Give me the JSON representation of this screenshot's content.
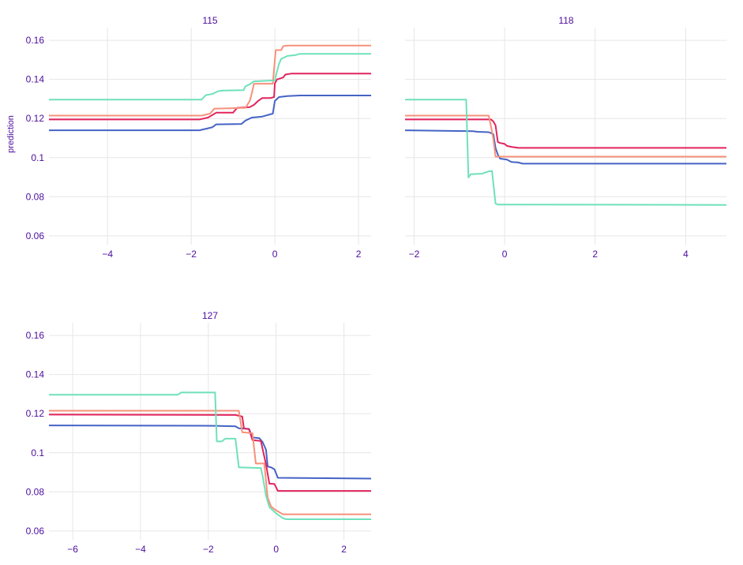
{
  "chart_data": {
    "type": "line",
    "ylabel": "prediction",
    "text_color": "#4b0d9c",
    "grid_color": "#e6e6e6",
    "y_ticks": [
      0.06,
      0.08,
      0.1,
      0.12,
      0.14,
      0.16
    ],
    "y_tick_labels": [
      "0.06",
      "0.08",
      "0.1",
      "0.12",
      "0.14",
      "0.16"
    ],
    "series_colors": [
      "#4563c5",
      "#e2245d",
      "#f6917a",
      "#6fe1ba"
    ],
    "panels": [
      {
        "title": "115",
        "xlim": [
          -5.4,
          2.3
        ],
        "ylim": [
          0.0555,
          0.1665
        ],
        "x_ticks": [
          -4,
          -2,
          0,
          2
        ],
        "x_tick_labels": [
          "−4",
          "−2",
          "0",
          "2"
        ],
        "series": [
          {
            "color": "#4563c5",
            "points": [
              [
                -5.4,
                0.114
              ],
              [
                -1.8,
                0.114
              ],
              [
                -1.5,
                0.1155
              ],
              [
                -1.4,
                0.117
              ],
              [
                -0.8,
                0.1172
              ],
              [
                -0.7,
                0.119
              ],
              [
                -0.55,
                0.1205
              ],
              [
                -0.3,
                0.121
              ],
              [
                -0.05,
                0.1225
              ],
              [
                0,
                0.129
              ],
              [
                0.1,
                0.131
              ],
              [
                0.3,
                0.1315
              ],
              [
                0.6,
                0.1318
              ],
              [
                2.3,
                0.1318
              ]
            ]
          },
          {
            "color": "#e2245d",
            "points": [
              [
                -5.4,
                0.1195
              ],
              [
                -1.8,
                0.1195
              ],
              [
                -1.6,
                0.1205
              ],
              [
                -1.4,
                0.123
              ],
              [
                -1.0,
                0.123
              ],
              [
                -0.9,
                0.1255
              ],
              [
                -0.6,
                0.1258
              ],
              [
                -0.5,
                0.127
              ],
              [
                -0.4,
                0.129
              ],
              [
                -0.3,
                0.1305
              ],
              [
                -0.1,
                0.1305
              ],
              [
                -0.02,
                0.131
              ],
              [
                0,
                0.138
              ],
              [
                0.05,
                0.14
              ],
              [
                0.2,
                0.141
              ],
              [
                0.25,
                0.1425
              ],
              [
                0.4,
                0.143
              ],
              [
                2.3,
                0.143
              ]
            ]
          },
          {
            "color": "#f6917a",
            "points": [
              [
                -5.4,
                0.1215
              ],
              [
                -1.75,
                0.1215
              ],
              [
                -1.55,
                0.1225
              ],
              [
                -1.45,
                0.125
              ],
              [
                -0.7,
                0.1255
              ],
              [
                -0.6,
                0.129
              ],
              [
                -0.55,
                0.133
              ],
              [
                -0.5,
                0.1378
              ],
              [
                -0.05,
                0.1378
              ],
              [
                0.02,
                0.155
              ],
              [
                0.15,
                0.155
              ],
              [
                0.2,
                0.157
              ],
              [
                0.3,
                0.1573
              ],
              [
                2.3,
                0.1573
              ]
            ]
          },
          {
            "color": "#6fe1ba",
            "points": [
              [
                -5.4,
                0.1297
              ],
              [
                -1.75,
                0.1297
              ],
              [
                -1.65,
                0.132
              ],
              [
                -1.5,
                0.1325
              ],
              [
                -1.35,
                0.134
              ],
              [
                -1.25,
                0.1343
              ],
              [
                -0.75,
                0.1345
              ],
              [
                -0.7,
                0.1365
              ],
              [
                -0.6,
                0.1375
              ],
              [
                -0.5,
                0.139
              ],
              [
                0,
                0.1395
              ],
              [
                0.05,
                0.144
              ],
              [
                0.1,
                0.148
              ],
              [
                0.15,
                0.1505
              ],
              [
                0.3,
                0.152
              ],
              [
                0.5,
                0.1525
              ],
              [
                0.6,
                0.1531
              ],
              [
                2.3,
                0.1531
              ]
            ]
          }
        ]
      },
      {
        "title": "118",
        "xlim": [
          -2.2,
          4.9
        ],
        "ylim": [
          0.0555,
          0.1665
        ],
        "x_ticks": [
          -2,
          0,
          2,
          4
        ],
        "x_tick_labels": [
          "−2",
          "0",
          "2",
          "4"
        ],
        "series": [
          {
            "color": "#4563c5",
            "points": [
              [
                -2.2,
                0.114
              ],
              [
                -0.7,
                0.1135
              ],
              [
                -0.6,
                0.1132
              ],
              [
                -0.35,
                0.113
              ],
              [
                -0.25,
                0.112
              ],
              [
                -0.2,
                0.105
              ],
              [
                -0.15,
                0.1015
              ],
              [
                -0.1,
                0.0995
              ],
              [
                0.05,
                0.099
              ],
              [
                0.15,
                0.0978
              ],
              [
                0.3,
                0.0975
              ],
              [
                0.4,
                0.0969
              ],
              [
                4.9,
                0.0969
              ]
            ]
          },
          {
            "color": "#e2245d",
            "points": [
              [
                -2.2,
                0.1195
              ],
              [
                -0.3,
                0.1195
              ],
              [
                -0.25,
                0.1185
              ],
              [
                -0.2,
                0.1165
              ],
              [
                -0.15,
                0.108
              ],
              [
                -0.1,
                0.1075
              ],
              [
                0,
                0.107
              ],
              [
                0.05,
                0.106
              ],
              [
                0.15,
                0.1055
              ],
              [
                0.3,
                0.105
              ],
              [
                4.9,
                0.105
              ]
            ]
          },
          {
            "color": "#f6917a",
            "points": [
              [
                -2.2,
                0.1215
              ],
              [
                -0.4,
                0.1215
              ],
              [
                -0.35,
                0.1215
              ],
              [
                -0.3,
                0.1158
              ],
              [
                -0.25,
                0.1095
              ],
              [
                -0.2,
                0.1005
              ],
              [
                4.9,
                0.1005
              ]
            ]
          },
          {
            "color": "#6fe1ba",
            "points": [
              [
                -2.2,
                0.1297
              ],
              [
                -0.85,
                0.1297
              ],
              [
                -0.8,
                0.0898
              ],
              [
                -0.75,
                0.0915
              ],
              [
                -0.5,
                0.0918
              ],
              [
                -0.35,
                0.093
              ],
              [
                -0.28,
                0.0932
              ],
              [
                -0.2,
                0.0765
              ],
              [
                -0.15,
                0.076
              ],
              [
                4.9,
                0.0758
              ]
            ]
          }
        ]
      },
      {
        "title": "127",
        "xlim": [
          -6.7,
          2.8
        ],
        "ylim": [
          0.0555,
          0.1665
        ],
        "x_ticks": [
          -6,
          -4,
          -2,
          0,
          2
        ],
        "x_tick_labels": [
          "−6",
          "−4",
          "−2",
          "0",
          "2"
        ],
        "series": [
          {
            "color": "#4563c5",
            "points": [
              [
                -6.7,
                0.114
              ],
              [
                -1.8,
                0.1138
              ],
              [
                -1.2,
                0.1135
              ],
              [
                -1.1,
                0.1125
              ],
              [
                -0.8,
                0.1122
              ],
              [
                -0.7,
                0.1078
              ],
              [
                -0.5,
                0.1075
              ],
              [
                -0.4,
                0.1055
              ],
              [
                -0.3,
                0.1015
              ],
              [
                -0.25,
                0.093
              ],
              [
                -0.15,
                0.0925
              ],
              [
                -0.05,
                0.0915
              ],
              [
                0.05,
                0.0872
              ],
              [
                1.5,
                0.087
              ],
              [
                2.8,
                0.0868
              ]
            ]
          },
          {
            "color": "#e2245d",
            "points": [
              [
                -6.7,
                0.1195
              ],
              [
                -1.2,
                0.1193
              ],
              [
                -1.0,
                0.1185
              ],
              [
                -0.95,
                0.1125
              ],
              [
                -0.8,
                0.112
              ],
              [
                -0.7,
                0.1065
              ],
              [
                -0.45,
                0.106
              ],
              [
                -0.3,
                0.094
              ],
              [
                -0.2,
                0.0842
              ],
              [
                -0.05,
                0.084
              ],
              [
                0.05,
                0.0805
              ],
              [
                2.8,
                0.0805
              ]
            ]
          },
          {
            "color": "#f6917a",
            "points": [
              [
                -6.7,
                0.1215
              ],
              [
                -1.1,
                0.1215
              ],
              [
                -1.0,
                0.1105
              ],
              [
                -0.7,
                0.11
              ],
              [
                -0.6,
                0.0945
              ],
              [
                -0.35,
                0.0945
              ],
              [
                -0.25,
                0.077
              ],
              [
                -0.15,
                0.0725
              ],
              [
                0,
                0.0705
              ],
              [
                0.2,
                0.0685
              ],
              [
                2.8,
                0.0685
              ]
            ]
          },
          {
            "color": "#6fe1ba",
            "points": [
              [
                -6.7,
                0.1297
              ],
              [
                -2.9,
                0.1297
              ],
              [
                -2.8,
                0.1308
              ],
              [
                -1.8,
                0.1308
              ],
              [
                -1.75,
                0.1058
              ],
              [
                -1.6,
                0.1058
              ],
              [
                -1.5,
                0.1072
              ],
              [
                -1.2,
                0.1072
              ],
              [
                -1.1,
                0.0925
              ],
              [
                -0.45,
                0.0922
              ],
              [
                -0.4,
                0.0882
              ],
              [
                -0.3,
                0.078
              ],
              [
                -0.2,
                0.0722
              ],
              [
                0,
                0.069
              ],
              [
                0.2,
                0.0665
              ],
              [
                0.3,
                0.066
              ],
              [
                2.8,
                0.066
              ]
            ]
          }
        ]
      }
    ]
  }
}
